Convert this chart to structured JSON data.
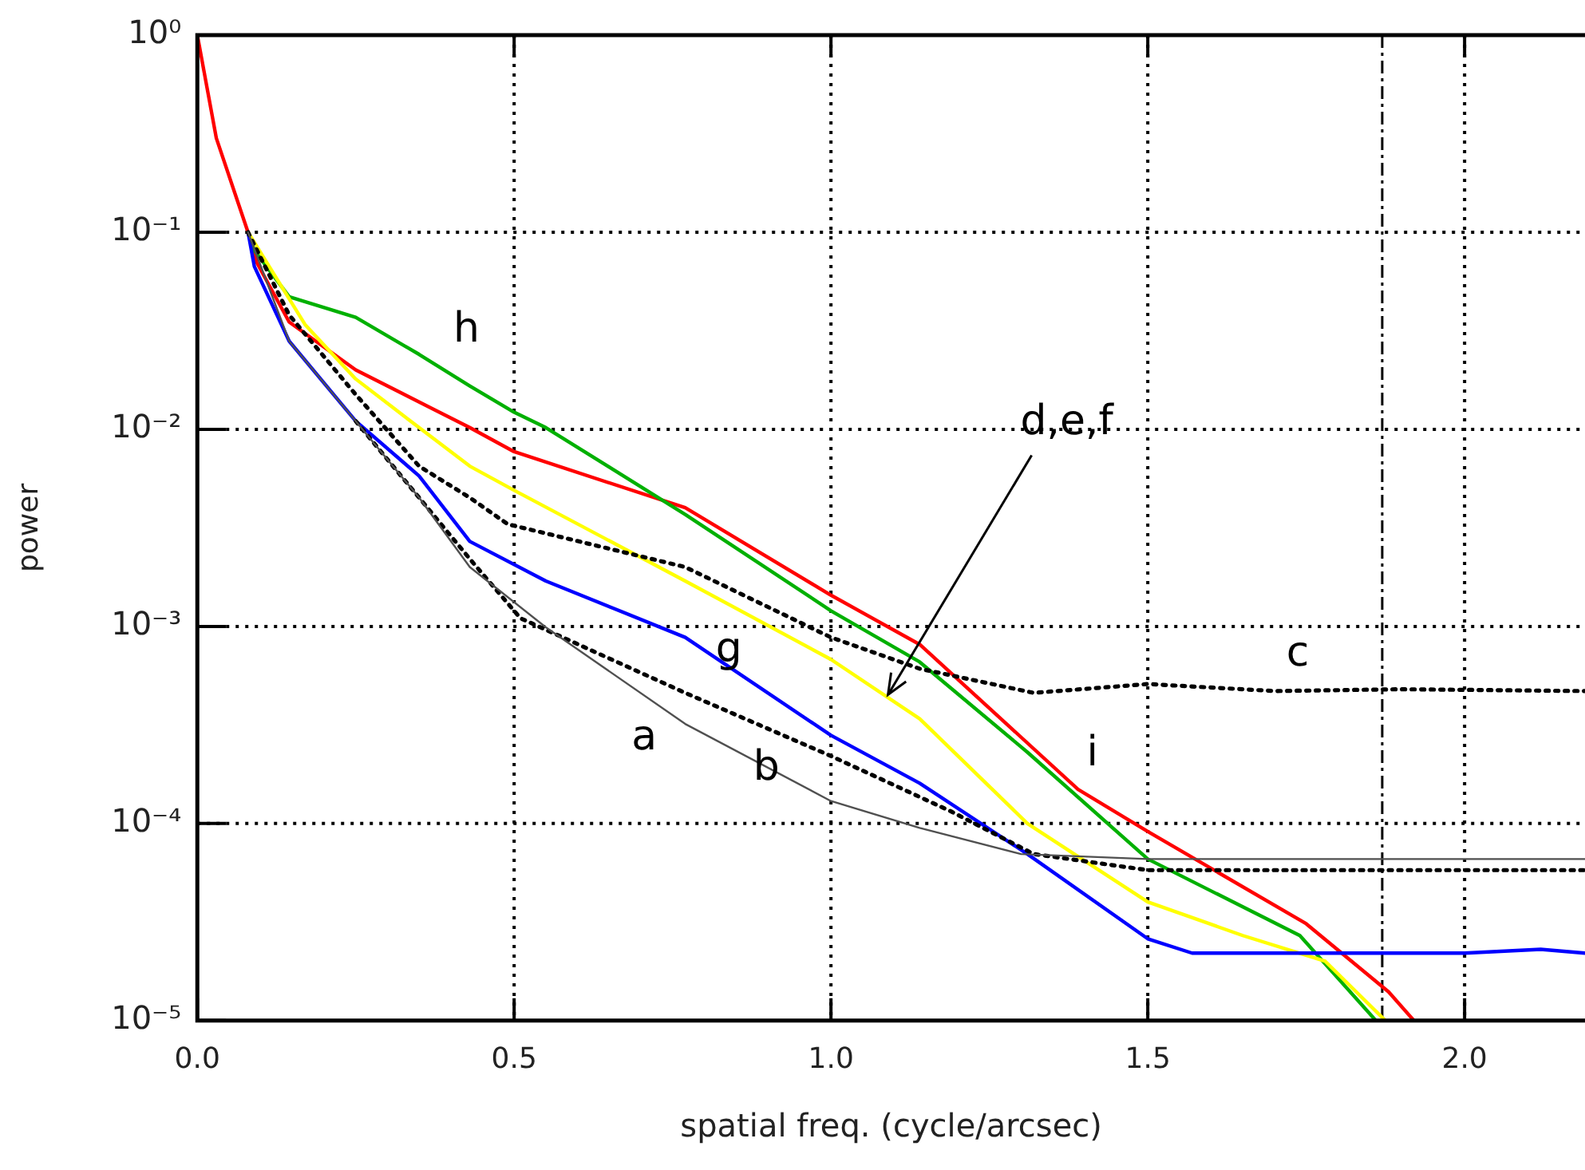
{
  "chart_data": {
    "type": "line",
    "xlabel": "spatial freq. (cycle/arcsec)",
    "ylabel": "power",
    "log": "y",
    "xlim": [
      0,
      2.19
    ],
    "xticks": [
      {
        "value": 0,
        "label": "0.0"
      },
      {
        "value": 0.5,
        "label": "0.5"
      },
      {
        "value": 1,
        "label": "1.0"
      },
      {
        "value": 1.5,
        "label": "1.5"
      },
      {
        "value": 2,
        "label": "2.0"
      }
    ],
    "ylim": [
      1e-05,
      1
    ],
    "yticks": [
      {
        "value": 1,
        "label": "10⁰"
      },
      {
        "value": 0.1,
        "label": "10⁻¹"
      },
      {
        "value": 0.01,
        "label": "10⁻²"
      },
      {
        "value": 0.001,
        "label": "10⁻³"
      },
      {
        "value": 0.0001,
        "label": "10⁻⁴"
      },
      {
        "value": 1e-05,
        "label": "10⁻⁵"
      }
    ],
    "grid": true,
    "legend": false,
    "marker": "none",
    "series": [
      {
        "color": "#505050",
        "line_style": "solid",
        "x": [
          0.08,
          0.145,
          0.25,
          0.35,
          0.43,
          0.55,
          0.77,
          1.0,
          1.14,
          1.3,
          1.5,
          1.7,
          1.9,
          2.19
        ],
        "values": [
          0.1,
          0.028,
          0.011,
          0.0045,
          0.002,
          0.00099,
          0.00032,
          0.00013,
          9.5e-05,
          7e-05,
          6.6e-05,
          6.6e-05,
          6.6e-05,
          6.6e-05
        ]
      },
      {
        "color": "#000000",
        "line_style": "dotted",
        "x": [
          0.25,
          0.35,
          0.43,
          0.51,
          0.77,
          1.0,
          1.19,
          1.32,
          1.5,
          1.7,
          1.9,
          2.19
        ],
        "values": [
          0.011,
          0.0045,
          0.0022,
          0.0011,
          0.00046,
          0.00022,
          0.000115,
          7e-05,
          5.8e-05,
          5.8e-05,
          5.8e-05,
          5.8e-05
        ]
      },
      {
        "color": "#000000",
        "line_style": "dotted",
        "x": [
          0.08,
          0.145,
          0.25,
          0.35,
          0.43,
          0.49,
          0.77,
          1.0,
          1.14,
          1.32,
          1.5,
          1.7,
          1.9,
          2.19
        ],
        "values": [
          0.1,
          0.038,
          0.015,
          0.0065,
          0.0045,
          0.0033,
          0.002,
          0.00088,
          0.00061,
          0.00046,
          0.00051,
          0.00047,
          0.00048,
          0.00047
        ]
      },
      {
        "color": "#0000ff",
        "line_style": "solid",
        "x": [
          0.08,
          0.09,
          0.145,
          0.25,
          0.35,
          0.43,
          0.55,
          0.77,
          1.0,
          1.14,
          1.31,
          1.5,
          1.57,
          1.8,
          2.0,
          2.12,
          2.19
        ],
        "values": [
          0.1,
          0.067,
          0.028,
          0.011,
          0.0058,
          0.0027,
          0.0017,
          0.00088,
          0.00028,
          0.00016,
          7e-05,
          2.6e-05,
          2.2e-05,
          2.2e-05,
          2.2e-05,
          2.3e-05,
          2.2e-05
        ]
      },
      {
        "color": "#ffff00",
        "line_style": "solid",
        "x": [
          0.08,
          0.17,
          0.25,
          0.35,
          0.43,
          0.5,
          0.77,
          1.0,
          1.14,
          1.31,
          1.5,
          1.65,
          1.78,
          1.875
        ],
        "values": [
          0.1,
          0.034,
          0.018,
          0.0102,
          0.0065,
          0.0049,
          0.0017,
          0.00068,
          0.00034,
          0.0001,
          4e-05,
          2.7e-05,
          2e-05,
          1e-05
        ]
      },
      {
        "color": "#00b000",
        "line_style": "solid",
        "x": [
          0.08,
          0.09,
          0.145,
          0.25,
          0.35,
          0.43,
          0.5,
          0.55,
          0.77,
          1.0,
          1.14,
          1.31,
          1.5,
          1.74,
          1.86
        ],
        "values": [
          0.1,
          0.081,
          0.047,
          0.037,
          0.024,
          0.0166,
          0.0122,
          0.0102,
          0.0037,
          0.0012,
          0.00066,
          0.00023,
          6.6e-05,
          2.7e-05,
          1e-05
        ]
      },
      {
        "color": "#ff0000",
        "line_style": "solid",
        "x": [
          0,
          0.03,
          0.08,
          0.094,
          0.145,
          0.25,
          0.43,
          0.5,
          0.77,
          1.0,
          1.14,
          1.39,
          1.5,
          1.75,
          1.88,
          1.92
        ],
        "values": [
          1,
          0.3,
          0.1,
          0.07,
          0.035,
          0.02,
          0.0102,
          0.0077,
          0.004,
          0.00144,
          0.00081,
          0.000149,
          9.1e-05,
          3.1e-05,
          1.4e-05,
          1e-05
        ]
      }
    ],
    "ref_lines": [
      {
        "axis": "x",
        "value": 1.87,
        "line_style": "dashed",
        "color": "#000000"
      }
    ],
    "annotations": [
      "h",
      {
        "text": "d,e,f",
        "x": 1.09,
        "y": 0.00045
      },
      "g",
      "a",
      "b",
      "c",
      "i"
    ]
  }
}
